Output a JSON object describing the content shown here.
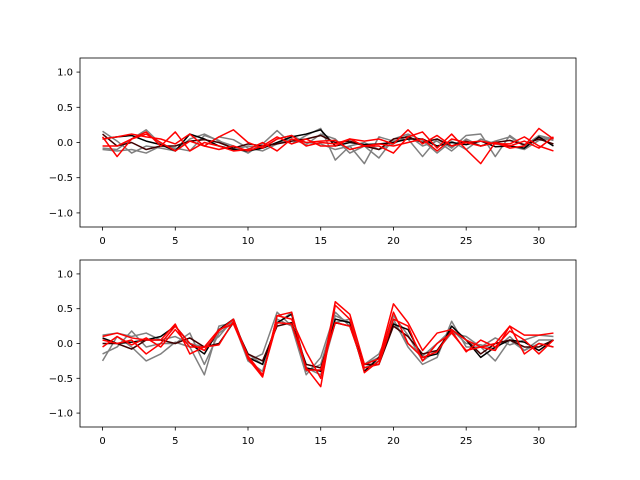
{
  "chart_data": [
    {
      "type": "line",
      "title": "",
      "xlabel": "",
      "ylabel": "",
      "xlim": [
        -1.55,
        32.55
      ],
      "ylim": [
        -1.2,
        1.2
      ],
      "xticks": [
        0,
        5,
        10,
        15,
        20,
        25,
        30
      ],
      "yticks": [
        -1.0,
        -0.5,
        0.0,
        0.5,
        1.0
      ],
      "xtick_labels": [
        "0",
        "5",
        "10",
        "15",
        "20",
        "25",
        "30"
      ],
      "ytick_labels": [
        "−1.0",
        "−0.5",
        "0.0",
        "0.5",
        "1.0"
      ],
      "grid": false,
      "x": [
        0,
        1,
        2,
        3,
        4,
        5,
        6,
        7,
        8,
        9,
        10,
        11,
        12,
        13,
        14,
        15,
        16,
        17,
        18,
        19,
        20,
        21,
        22,
        23,
        24,
        25,
        26,
        27,
        28,
        29,
        30,
        31
      ],
      "series": [
        {
          "color": "#808080",
          "values": [
            0.16,
            0.02,
            -0.15,
            -0.05,
            -0.08,
            -0.12,
            0.05,
            0.12,
            0.02,
            -0.05,
            -0.15,
            -0.02,
            0.17,
            -0.02,
            0.1,
            0.2,
            -0.25,
            -0.05,
            -0.3,
            0.08,
            0.02,
            0.05,
            -0.2,
            0.05,
            -0.08,
            0.1,
            0.12,
            -0.2,
            0.1,
            -0.05,
            0.08,
            0.03
          ]
        },
        {
          "color": "#808080",
          "values": [
            -0.08,
            -0.1,
            0.05,
            0.18,
            -0.02,
            -0.1,
            0.02,
            -0.05,
            0.08,
            0.04,
            -0.08,
            -0.12,
            -0.02,
            0.05,
            -0.03,
            0.12,
            0.05,
            -0.15,
            -0.05,
            -0.22,
            0.05,
            0.12,
            0.03,
            -0.15,
            0.02,
            -0.1,
            0.05,
            -0.02,
            -0.05,
            -0.1,
            0.03,
            0.06
          ]
        },
        {
          "color": "#808080",
          "values": [
            -0.1,
            -0.12,
            -0.1,
            -0.15,
            -0.05,
            -0.08,
            -0.12,
            0.1,
            0.03,
            -0.1,
            -0.05,
            -0.08,
            0.05,
            0.1,
            0.0,
            -0.02,
            -0.1,
            -0.05,
            0.0,
            -0.1,
            -0.02,
            0.1,
            -0.05,
            0.02,
            -0.12,
            0.05,
            -0.05,
            0.02,
            0.08,
            -0.05,
            0.1,
            0.05
          ]
        },
        {
          "color": "#000000",
          "values": [
            0.05,
            0.08,
            0.1,
            0.02,
            -0.03,
            -0.12,
            0.12,
            0.05,
            -0.05,
            -0.1,
            -0.12,
            -0.08,
            0.0,
            0.08,
            0.12,
            0.18,
            -0.05,
            0.0,
            -0.03,
            -0.02,
            0.0,
            0.05,
            0.05,
            -0.05,
            0.0,
            -0.03,
            0.02,
            -0.06,
            -0.05,
            -0.08,
            0.08,
            -0.05
          ]
        },
        {
          "color": "#400000",
          "values": [
            0.12,
            -0.05,
            0.0,
            -0.1,
            -0.05,
            -0.05,
            0.02,
            0.04,
            0.0,
            -0.08,
            -0.02,
            -0.05,
            -0.02,
            0.02,
            0.05,
            0.1,
            0.0,
            0.02,
            -0.05,
            -0.1,
            0.05,
            0.08,
            0.0,
            0.05,
            -0.05,
            0.02,
            -0.05,
            0.0,
            0.03,
            -0.03,
            0.05,
            -0.02
          ]
        },
        {
          "color": "#ff0000",
          "values": [
            0.05,
            0.08,
            0.12,
            0.08,
            0.05,
            -0.02,
            0.12,
            -0.05,
            0.08,
            0.18,
            0.0,
            -0.08,
            0.05,
            0.1,
            -0.05,
            0.0,
            -0.02,
            0.05,
            0.02,
            0.05,
            -0.02,
            0.18,
            -0.02,
            0.1,
            -0.05,
            0.0,
            -0.05,
            0.0,
            -0.08,
            -0.05,
            0.2,
            0.05
          ]
        },
        {
          "color": "#ff0000",
          "values": [
            0.08,
            -0.2,
            0.05,
            0.15,
            -0.05,
            0.15,
            -0.12,
            0.0,
            -0.05,
            -0.12,
            -0.1,
            0.0,
            -0.12,
            0.05,
            0.0,
            0.02,
            0.03,
            -0.1,
            -0.05,
            -0.05,
            -0.15,
            0.08,
            0.15,
            -0.08,
            0.12,
            -0.1,
            -0.3,
            0.0,
            -0.05,
            0.02,
            -0.08,
            0.08
          ]
        },
        {
          "color": "#ff0000",
          "values": [
            -0.05,
            -0.05,
            0.05,
            0.12,
            0.0,
            -0.12,
            0.02,
            -0.05,
            -0.1,
            -0.05,
            -0.12,
            -0.05,
            0.08,
            -0.02,
            0.05,
            -0.05,
            -0.05,
            0.05,
            -0.05,
            -0.02,
            -0.05,
            0.0,
            0.05,
            -0.12,
            0.05,
            0.0,
            0.02,
            -0.02,
            -0.02,
            0.08,
            -0.05,
            -0.12
          ]
        }
      ]
    },
    {
      "type": "line",
      "title": "",
      "xlabel": "",
      "ylabel": "",
      "xlim": [
        -1.55,
        32.55
      ],
      "ylim": [
        -1.2,
        1.2
      ],
      "xticks": [
        0,
        5,
        10,
        15,
        20,
        25,
        30
      ],
      "yticks": [
        -1.0,
        -0.5,
        0.0,
        0.5,
        1.0
      ],
      "xtick_labels": [
        "0",
        "5",
        "10",
        "15",
        "20",
        "25",
        "30"
      ],
      "ytick_labels": [
        "−1.0",
        "−0.5",
        "0.0",
        "0.5",
        "1.0"
      ],
      "grid": false,
      "x": [
        0,
        1,
        2,
        3,
        4,
        5,
        6,
        7,
        8,
        9,
        10,
        11,
        12,
        13,
        14,
        15,
        16,
        17,
        18,
        19,
        20,
        21,
        22,
        23,
        24,
        25,
        26,
        27,
        28,
        29,
        30,
        31
      ],
      "series": [
        {
          "color": "#808080",
          "values": [
            -0.25,
            0.1,
            -0.05,
            -0.25,
            -0.15,
            0.02,
            -0.05,
            -0.45,
            0.25,
            0.3,
            -0.25,
            -0.4,
            0.35,
            0.25,
            -0.4,
            -0.3,
            0.4,
            0.3,
            -0.3,
            -0.2,
            0.35,
            -0.05,
            -0.3,
            -0.2,
            0.32,
            -0.05,
            -0.05,
            -0.25,
            0.05,
            -0.1,
            0.0,
            -0.05
          ]
        },
        {
          "color": "#808080",
          "values": [
            0.12,
            0.15,
            0.1,
            0.15,
            0.05,
            0.1,
            0.0,
            -0.05,
            0.1,
            0.35,
            -0.25,
            -0.15,
            0.45,
            0.25,
            -0.45,
            -0.2,
            0.45,
            0.25,
            -0.35,
            -0.25,
            0.4,
            0.12,
            -0.25,
            -0.1,
            0.15,
            0.1,
            -0.05,
            0.08,
            -0.02,
            0.05,
            0.12,
            0.1
          ]
        },
        {
          "color": "#808080",
          "values": [
            -0.15,
            -0.05,
            0.18,
            -0.05,
            0.0,
            0.0,
            0.15,
            -0.3,
            0.15,
            0.3,
            -0.15,
            -0.3,
            0.28,
            0.45,
            -0.35,
            -0.45,
            0.3,
            0.35,
            -0.3,
            -0.15,
            0.3,
            0.0,
            -0.18,
            0.0,
            0.2,
            0.0,
            -0.02,
            -0.08,
            0.1,
            -0.1,
            0.05,
            0.05
          ]
        },
        {
          "color": "#000000",
          "values": [
            0.08,
            0.0,
            0.02,
            0.05,
            0.1,
            0.25,
            0.0,
            -0.15,
            0.2,
            0.35,
            -0.2,
            -0.3,
            0.3,
            0.42,
            -0.35,
            -0.4,
            0.35,
            0.3,
            -0.4,
            -0.2,
            0.28,
            0.2,
            -0.2,
            -0.15,
            0.25,
            0.05,
            -0.2,
            -0.05,
            0.05,
            0.02,
            -0.1,
            0.05
          ]
        },
        {
          "color": "#400000",
          "values": [
            0.0,
            0.0,
            -0.08,
            0.05,
            0.05,
            0.0,
            0.08,
            -0.05,
            0.0,
            0.3,
            -0.15,
            -0.25,
            0.25,
            0.3,
            -0.3,
            -0.35,
            0.3,
            0.25,
            -0.3,
            -0.3,
            0.25,
            0.1,
            -0.15,
            -0.1,
            0.2,
            0.05,
            -0.15,
            0.0,
            0.05,
            -0.05,
            -0.05,
            0.05
          ]
        },
        {
          "color": "#ff0000",
          "values": [
            0.1,
            0.15,
            0.08,
            0.05,
            0.05,
            0.28,
            -0.15,
            -0.05,
            0.2,
            0.28,
            -0.2,
            -0.48,
            0.4,
            0.35,
            -0.12,
            -0.5,
            0.6,
            0.42,
            -0.3,
            -0.22,
            0.57,
            0.3,
            -0.1,
            0.15,
            0.2,
            0.05,
            -0.05,
            0.0,
            0.25,
            0.12,
            0.12,
            0.15
          ]
        },
        {
          "color": "#ff0000",
          "values": [
            -0.05,
            0.1,
            -0.02,
            0.08,
            -0.05,
            0.2,
            -0.05,
            -0.05,
            -0.02,
            0.32,
            -0.18,
            -0.45,
            0.3,
            0.28,
            -0.35,
            -0.62,
            0.55,
            0.35,
            -0.42,
            -0.25,
            0.45,
            0.0,
            -0.2,
            -0.12,
            0.18,
            -0.12,
            0.05,
            -0.05,
            0.18,
            0.05,
            -0.15,
            0.05
          ]
        },
        {
          "color": "#ff0000",
          "values": [
            0.05,
            0.0,
            0.05,
            -0.15,
            0.0,
            0.25,
            0.0,
            -0.1,
            0.18,
            0.35,
            -0.22,
            -0.48,
            0.4,
            0.45,
            -0.38,
            -0.38,
            0.3,
            0.25,
            -0.35,
            -0.3,
            0.35,
            0.25,
            -0.25,
            0.0,
            0.15,
            -0.1,
            -0.05,
            -0.1,
            0.25,
            -0.15,
            0.0,
            -0.05
          ]
        }
      ]
    }
  ]
}
